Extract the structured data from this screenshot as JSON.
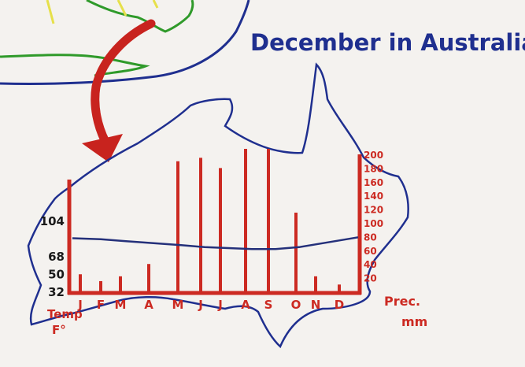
{
  "colors": {
    "paper": "#f4f2ef",
    "outline": "#1f2f8f",
    "bars": "#cc2a22",
    "line": "#24307a",
    "green": "#2f9a2a",
    "yellow": "#e6e04a",
    "arrow": "#c8231e"
  },
  "title": "December in Australia",
  "chart_data": {
    "type": "bar+line",
    "title": "December in Australia",
    "categories": [
      "J",
      "F",
      "M",
      "A",
      "M",
      "J",
      "J",
      "A",
      "S",
      "O",
      "N",
      "D"
    ],
    "precipitation": {
      "axis_label": [
        "Prec.",
        "mm"
      ],
      "values": [
        25,
        15,
        22,
        40,
        190,
        195,
        180,
        208,
        208,
        115,
        22,
        10
      ],
      "ylim": [
        0,
        200
      ],
      "ticks": [
        "20",
        "40",
        "60",
        "80",
        "100",
        "120",
        "140",
        "160",
        "180",
        "200"
      ]
    },
    "temperature": {
      "axis_label": [
        "Temp",
        "F°"
      ],
      "values": [
        86,
        85,
        83,
        81,
        79,
        77,
        76,
        75,
        75,
        77,
        81,
        87
      ],
      "ylim": [
        32,
        104
      ],
      "ticks": [
        "32",
        "50",
        "68",
        "104"
      ]
    }
  }
}
